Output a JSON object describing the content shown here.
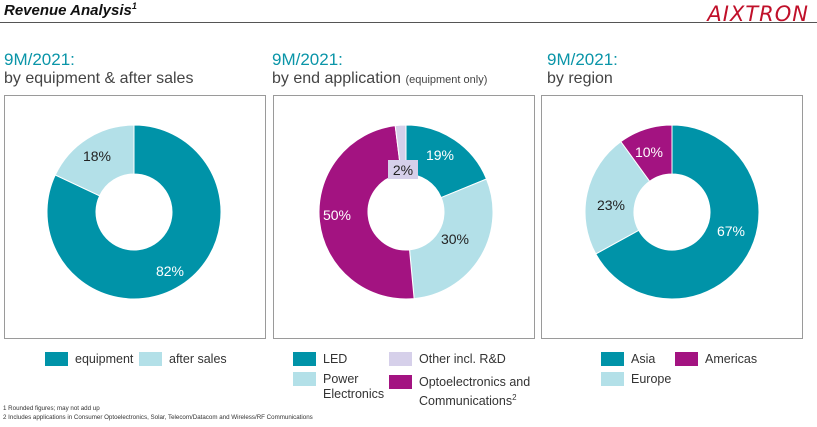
{
  "header": {
    "title": "Revenue Analysis",
    "title_sup": "1",
    "logo": "AIXTRON"
  },
  "colors": {
    "teal": "#0093a8",
    "light_blue": "#b3e0e8",
    "magenta": "#a31381",
    "lilac": "#d6d0ea",
    "title_blue": "#0a95a8"
  },
  "panels": [
    {
      "title": "9M/2021:",
      "subtitle": "by equipment & after sales",
      "subtitle_small": ""
    },
    {
      "title": "9M/2021:",
      "subtitle": "by end application",
      "subtitle_small": "(equipment only)"
    },
    {
      "title": "9M/2021:",
      "subtitle": "by region",
      "subtitle_small": ""
    }
  ],
  "legends": [
    [
      {
        "label": "equipment",
        "color": "#0093a8"
      },
      {
        "label": "after sales",
        "color": "#b3e0e8"
      }
    ],
    [
      {
        "label": "LED",
        "color": "#0093a8"
      },
      {
        "label": "Other incl. R&D",
        "color": "#d6d0ea"
      },
      {
        "label": "Power\nElectronics",
        "color": "#b3e0e8"
      },
      {
        "label": "Optoelectronics and\nCommunications",
        "sup": "2",
        "color": "#a31381"
      }
    ],
    [
      {
        "label": "Asia",
        "color": "#0093a8"
      },
      {
        "label": "Americas",
        "color": "#a31381"
      },
      {
        "label": "Europe",
        "color": "#b3e0e8"
      }
    ]
  ],
  "chart_data": [
    {
      "type": "pie",
      "donut": true,
      "title": "9M/2021: by equipment & after sales",
      "slices": [
        {
          "name": "equipment",
          "value": 82,
          "label": "82%",
          "color": "#0093a8"
        },
        {
          "name": "after sales",
          "value": 18,
          "label": "18%",
          "color": "#b3e0e8"
        }
      ]
    },
    {
      "type": "pie",
      "donut": true,
      "title": "9M/2021: by end application (equipment only)",
      "slices": [
        {
          "name": "LED",
          "value": 19,
          "label": "19%",
          "color": "#0093a8"
        },
        {
          "name": "Power Electronics",
          "value": 30,
          "label": "30%",
          "color": "#b3e0e8"
        },
        {
          "name": "Optoelectronics and Communications",
          "value": 50,
          "label": "50%",
          "color": "#a31381"
        },
        {
          "name": "Other incl. R&D",
          "value": 2,
          "label": "2%",
          "color": "#d6d0ea"
        }
      ]
    },
    {
      "type": "pie",
      "donut": true,
      "title": "9M/2021: by region",
      "slices": [
        {
          "name": "Asia",
          "value": 67,
          "label": "67%",
          "color": "#0093a8"
        },
        {
          "name": "Europe",
          "value": 23,
          "label": "23%",
          "color": "#b3e0e8"
        },
        {
          "name": "Americas",
          "value": 10,
          "label": "10%",
          "color": "#a31381"
        }
      ]
    }
  ],
  "footnotes": [
    "1 Rounded figures; may not add up",
    "2 Includes applications in Consumer Optoelectronics, Solar, Telecom/Datacom and Wireless/RF Communications"
  ]
}
